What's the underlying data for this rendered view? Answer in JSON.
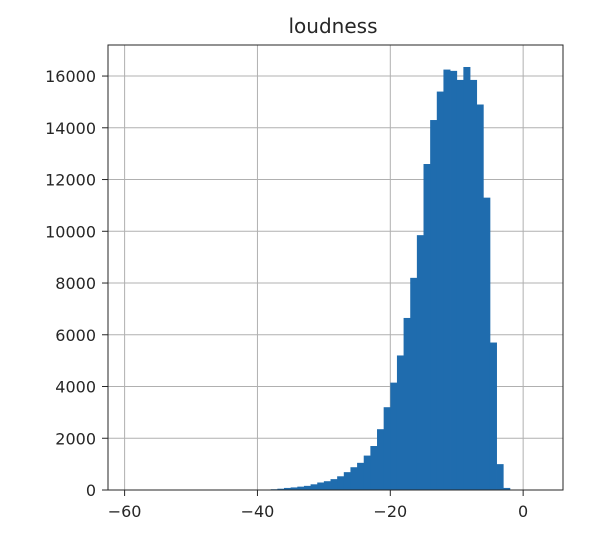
{
  "chart_data": {
    "type": "bar",
    "subtype": "histogram",
    "title": "loudness",
    "xlabel": "",
    "ylabel": "",
    "xlim": [
      -62.5,
      6.0
    ],
    "ylim": [
      0,
      17200
    ],
    "x_ticks": [
      -60,
      -40,
      -20,
      0
    ],
    "y_ticks": [
      0,
      2000,
      4000,
      6000,
      8000,
      10000,
      12000,
      14000,
      16000
    ],
    "grid": true,
    "color": "#1f6cae",
    "bin_edges": [
      -60.0,
      -59.0,
      -58.0,
      -57.0,
      -56.0,
      -55.0,
      -54.0,
      -53.0,
      -52.0,
      -51.0,
      -50.0,
      -49.0,
      -48.0,
      -47.0,
      -46.0,
      -45.0,
      -44.0,
      -43.0,
      -42.0,
      -41.0,
      -40.0,
      -39.0,
      -38.0,
      -37.0,
      -36.0,
      -35.0,
      -34.0,
      -33.0,
      -32.0,
      -31.0,
      -30.0,
      -29.0,
      -28.0,
      -27.0,
      -26.0,
      -25.0,
      -24.0,
      -23.0,
      -22.0,
      -21.0,
      -20.0,
      -19.0,
      -18.0,
      -17.0,
      -16.0,
      -15.0,
      -14.0,
      -13.0,
      -12.0,
      -11.0,
      -10.0,
      -9.0,
      -8.0,
      -7.0,
      -6.0,
      -5.0,
      -4.0,
      -3.0,
      -2.0,
      -1.0,
      0.0,
      1.0,
      2.0,
      3.0,
      4.0
    ],
    "values": [
      0,
      0,
      0,
      0,
      0,
      0,
      0,
      0,
      0,
      0,
      0,
      0,
      0,
      0,
      0,
      0,
      0,
      0,
      0,
      0,
      0,
      0,
      30,
      50,
      80,
      100,
      130,
      160,
      220,
      290,
      340,
      420,
      530,
      690,
      880,
      1050,
      1330,
      1700,
      2350,
      3200,
      4150,
      5200,
      6650,
      8200,
      9850,
      12600,
      14300,
      15400,
      16250,
      16200,
      15850,
      16350,
      15850,
      14900,
      11300,
      5700,
      1000,
      80,
      10,
      0,
      0,
      0,
      0,
      0
    ]
  }
}
